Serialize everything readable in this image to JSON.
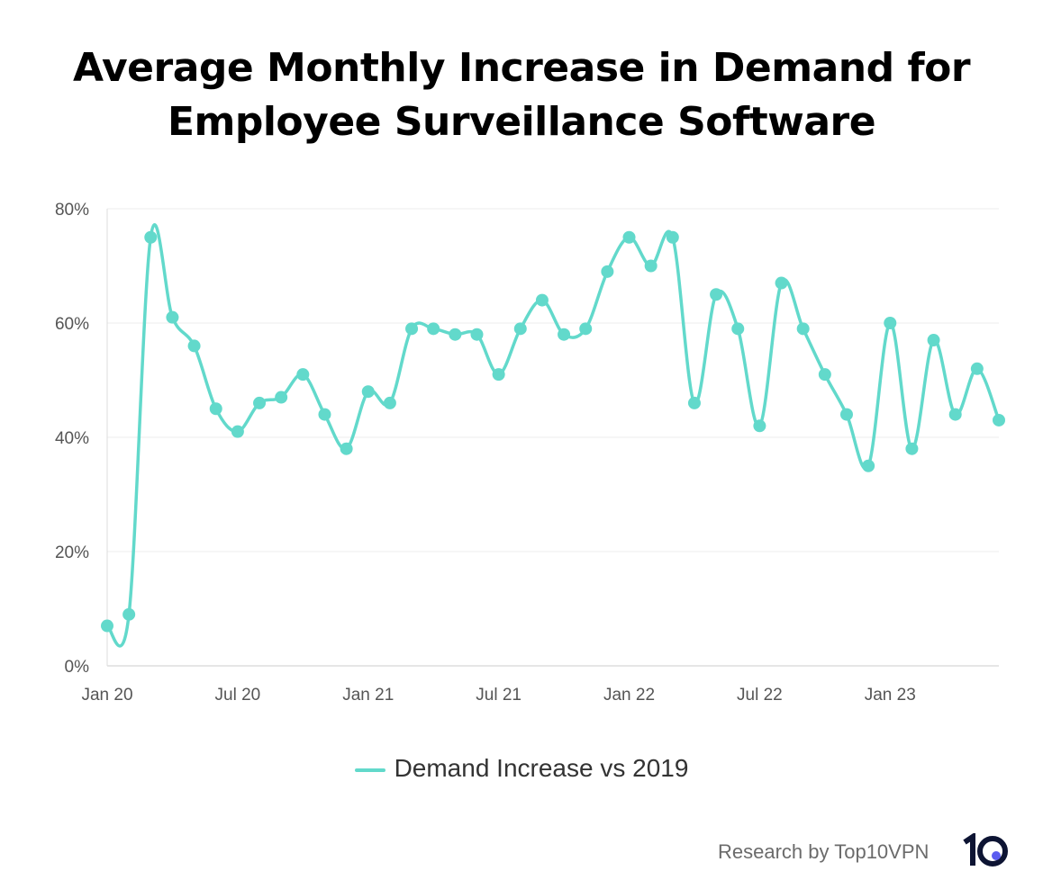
{
  "chart_data": {
    "type": "line",
    "title": "Average Monthly Increase in Demand for Employee Surveillance Software",
    "x": [
      "Jan 20",
      "Feb 20",
      "Mar 20",
      "Apr 20",
      "May 20",
      "Jun 20",
      "Jul 20",
      "Aug 20",
      "Sep 20",
      "Oct 20",
      "Nov 20",
      "Dec 20",
      "Jan 21",
      "Feb 21",
      "Mar 21",
      "Apr 21",
      "May 21",
      "Jun 21",
      "Jul 21",
      "Aug 21",
      "Sep 21",
      "Oct 21",
      "Nov 21",
      "Dec 21",
      "Jan 22",
      "Feb 22",
      "Mar 22",
      "Apr 22",
      "May 22",
      "Jun 22",
      "Jul 22",
      "Aug 22",
      "Sep 22",
      "Oct 22",
      "Nov 22",
      "Dec 22",
      "Jan 23",
      "Feb 23",
      "Mar 23",
      "Apr 23",
      "May 23",
      "Jun 23"
    ],
    "series": [
      {
        "name": "Demand Increase vs 2019",
        "color": "#62d9cb",
        "values": [
          7,
          9,
          75,
          61,
          56,
          45,
          41,
          46,
          47,
          51,
          44,
          38,
          48,
          46,
          59,
          59,
          58,
          58,
          51,
          59,
          64,
          58,
          59,
          69,
          75,
          70,
          75,
          46,
          65,
          59,
          42,
          67,
          59,
          51,
          44,
          35,
          60,
          38,
          57,
          44,
          52,
          43
        ]
      }
    ],
    "xticks": [
      "Jan 20",
      "Jul 20",
      "Jan 21",
      "Jul 21",
      "Jan 22",
      "Jul 22",
      "Jan 23"
    ],
    "yticks": [
      "0%",
      "20%",
      "40%",
      "60%",
      "80%"
    ],
    "ylim": [
      0,
      80
    ],
    "grid": true,
    "legend": "bottom"
  },
  "credit": "Research by Top10VPN",
  "logo_text": "10"
}
